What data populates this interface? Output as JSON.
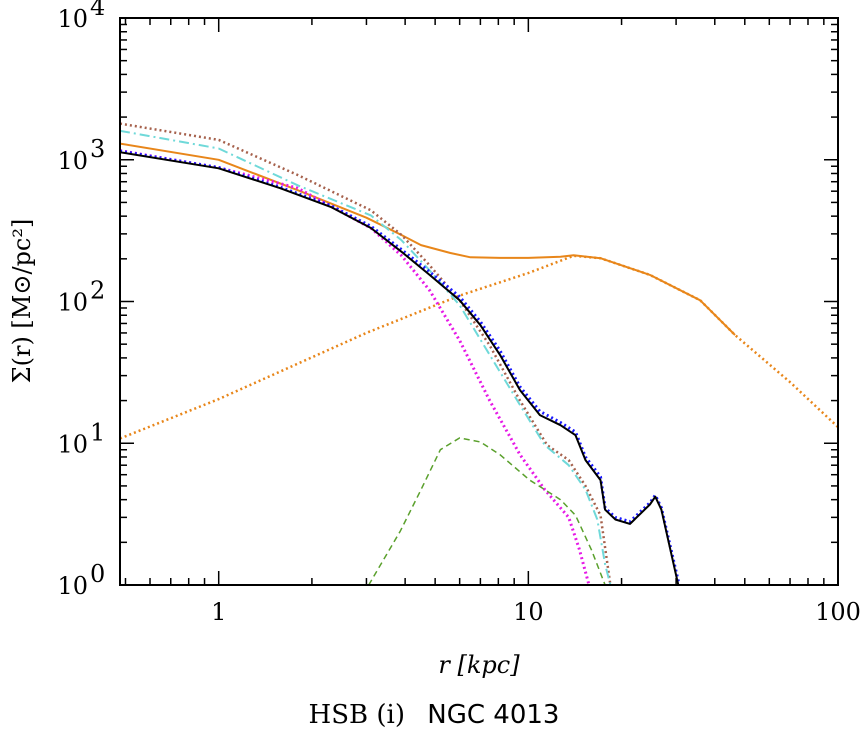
{
  "chart_data": {
    "type": "line",
    "title": "",
    "xlabel": "r [kpc]",
    "ylabel": "Σ(r) [M⊙/pc²]",
    "xscale": "log",
    "yscale": "log",
    "xlim": [
      0.48,
      100
    ],
    "ylim": [
      1,
      10000
    ],
    "grid": false,
    "x_ticks": [
      {
        "v": 1,
        "label": "1"
      },
      {
        "v": 10,
        "label": "10"
      },
      {
        "v": 100,
        "label": "100"
      }
    ],
    "y_ticks": [
      {
        "v": 1,
        "label": "10",
        "exp": "0"
      },
      {
        "v": 10,
        "label": "10",
        "exp": "1"
      },
      {
        "v": 100,
        "label": "10",
        "exp": "2"
      },
      {
        "v": 1000,
        "label": "10",
        "exp": "3"
      },
      {
        "v": 10000,
        "label": "10",
        "exp": "4"
      }
    ],
    "series": [
      {
        "color": "#e8861a",
        "style": "dotted",
        "width": 2.5,
        "points": [
          [
            0.48,
            10.8
          ],
          [
            1,
            20.5
          ],
          [
            3,
            60
          ],
          [
            6,
            110
          ],
          [
            10,
            159
          ],
          [
            14,
            210
          ],
          [
            17.1,
            202
          ],
          [
            24.7,
            154
          ],
          [
            35.9,
            102
          ],
          [
            46.5,
            58
          ],
          [
            70,
            27
          ],
          [
            100,
            13
          ]
        ]
      },
      {
        "color": "#e8861a",
        "style": "solid",
        "width": 2,
        "points": [
          [
            0.48,
            1300
          ],
          [
            1,
            1000
          ],
          [
            1.8,
            610
          ],
          [
            3.0,
            390
          ],
          [
            3.9,
            294
          ],
          [
            4.5,
            250
          ],
          [
            5.6,
            220
          ],
          [
            6.5,
            205
          ],
          [
            8.1,
            203
          ],
          [
            10,
            203
          ],
          [
            12.7,
            207
          ],
          [
            14,
            212
          ],
          [
            17.1,
            202
          ],
          [
            24.7,
            154
          ],
          [
            35.9,
            102
          ],
          [
            46.5,
            58
          ]
        ]
      },
      {
        "color": "#a6614c",
        "style": "dotted",
        "width": 2.5,
        "points": [
          [
            0.48,
            1800
          ],
          [
            1,
            1380
          ],
          [
            1.8,
            780
          ],
          [
            3.1,
            440
          ],
          [
            3.9,
            294
          ],
          [
            4.8,
            180
          ],
          [
            6.0,
            102
          ],
          [
            7.5,
            49
          ],
          [
            9.4,
            20
          ],
          [
            11.5,
            9.7
          ],
          [
            13.5,
            7.6
          ],
          [
            15.3,
            5
          ],
          [
            17.1,
            3.1
          ],
          [
            18.4,
            1
          ]
        ]
      },
      {
        "color": "#6fd9d9",
        "style": "dashdot",
        "width": 2,
        "points": [
          [
            0.48,
            1600
          ],
          [
            1,
            1200
          ],
          [
            1.8,
            660
          ],
          [
            3.1,
            405
          ],
          [
            3.9,
            270
          ],
          [
            4.8,
            166
          ],
          [
            6.0,
            94
          ],
          [
            7.5,
            42
          ],
          [
            9.4,
            18.6
          ],
          [
            11.3,
            9.7
          ],
          [
            13.5,
            7
          ],
          [
            15.3,
            4.7
          ],
          [
            16.7,
            2.9
          ],
          [
            17.7,
            1.4
          ],
          [
            18.4,
            1
          ]
        ]
      },
      {
        "color": "#e619e6",
        "style": "dotted",
        "width": 3,
        "points": [
          [
            0.48,
            1160
          ],
          [
            1,
            880
          ],
          [
            1.8,
            630
          ],
          [
            3.1,
            330
          ],
          [
            3.9,
            210
          ],
          [
            4.8,
            120
          ],
          [
            6.0,
            53
          ],
          [
            7.5,
            20
          ],
          [
            9.4,
            8.3
          ],
          [
            11.3,
            4.7
          ],
          [
            13.5,
            3
          ],
          [
            14.6,
            1.8
          ],
          [
            15.7,
            1
          ]
        ]
      },
      {
        "color": "#5aa02c",
        "style": "dashed",
        "width": 1.5,
        "points": [
          [
            3.05,
            1
          ],
          [
            3.86,
            2.4
          ],
          [
            4.5,
            4.7
          ],
          [
            5.2,
            9
          ],
          [
            6.0,
            10.9
          ],
          [
            7.0,
            10.2
          ],
          [
            8.1,
            8.3
          ],
          [
            10.1,
            5.5
          ],
          [
            12.7,
            4
          ],
          [
            14.2,
            3.1
          ],
          [
            16.0,
            1.76
          ],
          [
            17.7,
            1
          ]
        ]
      },
      {
        "color": "#1a1aff",
        "style": "dotted",
        "width": 3,
        "points": [
          [
            0.48,
            1150
          ],
          [
            1,
            880
          ],
          [
            1.58,
            640
          ],
          [
            2.3,
            475
          ],
          [
            3.1,
            340
          ],
          [
            3.9,
            232
          ],
          [
            4.8,
            162
          ],
          [
            6.0,
            108
          ],
          [
            7.0,
            72
          ],
          [
            8.1,
            45
          ],
          [
            9.4,
            25
          ],
          [
            10.9,
            16.8
          ],
          [
            12.7,
            14
          ],
          [
            14.2,
            12
          ],
          [
            15.3,
            8
          ],
          [
            17.1,
            5.8
          ],
          [
            17.7,
            3.5
          ],
          [
            19.1,
            3.0
          ],
          [
            21.3,
            2.8
          ],
          [
            24.7,
            3.8
          ],
          [
            25.7,
            4.3
          ],
          [
            26.9,
            3.5
          ],
          [
            30.7,
            1
          ]
        ]
      },
      {
        "color": "#000000",
        "style": "solid",
        "width": 2,
        "points": [
          [
            0.48,
            1130
          ],
          [
            1,
            870
          ],
          [
            1.58,
            630
          ],
          [
            2.3,
            465
          ],
          [
            3.1,
            330
          ],
          [
            3.9,
            224
          ],
          [
            4.8,
            154
          ],
          [
            6.0,
            102
          ],
          [
            7.0,
            68
          ],
          [
            8.1,
            42
          ],
          [
            9.4,
            23.7
          ],
          [
            10.9,
            15.8
          ],
          [
            12.7,
            13.4
          ],
          [
            14.2,
            11.4
          ],
          [
            15.3,
            7.6
          ],
          [
            17.1,
            5.5
          ],
          [
            17.7,
            3.4
          ],
          [
            19.1,
            2.9
          ],
          [
            21.3,
            2.7
          ],
          [
            24.7,
            3.7
          ],
          [
            25.7,
            4.2
          ],
          [
            26.9,
            3.4
          ],
          [
            30.5,
            1
          ]
        ]
      }
    ]
  },
  "caption": {
    "sample": "HSB (i)",
    "galaxy": "NGC 4013"
  }
}
